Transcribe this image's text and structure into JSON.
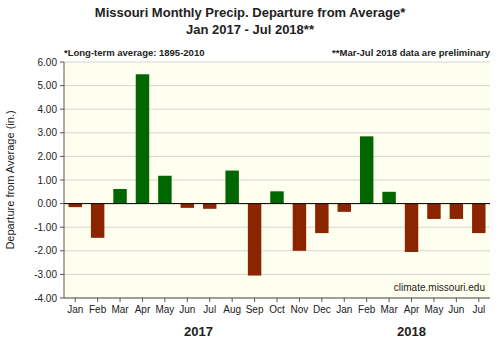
{
  "chart_data": {
    "type": "bar",
    "title": "Missouri Monthly Precip. Departure from Average*",
    "subtitle": "Jan 2017 - Jul 2018**",
    "ylabel": "Departure from Average (in.)",
    "annotations": [
      "*Long-term average: 1895-2010",
      "**Mar-Jul 2018 data are preliminary",
      "climate.missouri.edu"
    ],
    "group_labels": [
      "2017",
      "2018"
    ],
    "categories": [
      "Jan",
      "Feb",
      "Mar",
      "Apr",
      "May",
      "Jun",
      "Jul",
      "Aug",
      "Sep",
      "Oct",
      "Nov",
      "Dec",
      "Jan",
      "Feb",
      "Mar",
      "Apr",
      "May",
      "Jun",
      "Jul"
    ],
    "values": [
      -0.15,
      -1.45,
      0.62,
      5.48,
      1.18,
      -0.18,
      -0.22,
      1.4,
      -3.05,
      0.52,
      -2.0,
      -1.25,
      -0.35,
      2.85,
      0.5,
      -2.05,
      -0.65,
      -0.65,
      -1.25
    ],
    "colors": [
      "#8B2500",
      "#8B2500",
      "#006600",
      "#006600",
      "#006600",
      "#8B2500",
      "#8B2500",
      "#006600",
      "#8B2500",
      "#006600",
      "#8B2500",
      "#8B2500",
      "#8B2500",
      "#006600",
      "#006600",
      "#8B2500",
      "#8B2500",
      "#8B2500",
      "#8B2500"
    ],
    "ylim": [
      -4.0,
      6.0
    ],
    "yticks": [
      {
        "value": -4.0,
        "label": "-4.00"
      },
      {
        "value": -3.0,
        "label": "-3.00"
      },
      {
        "value": -2.0,
        "label": "-2.00"
      },
      {
        "value": -1.0,
        "label": "-1.00"
      },
      {
        "value": 0.0,
        "label": "0.00"
      },
      {
        "value": 1.0,
        "label": "1.00"
      },
      {
        "value": 2.0,
        "label": "2.00"
      },
      {
        "value": 3.0,
        "label": "3.00"
      },
      {
        "value": 4.0,
        "label": "4.00"
      },
      {
        "value": 5.0,
        "label": "5.00"
      },
      {
        "value": 6.0,
        "label": "6.00"
      }
    ],
    "grid": true
  }
}
